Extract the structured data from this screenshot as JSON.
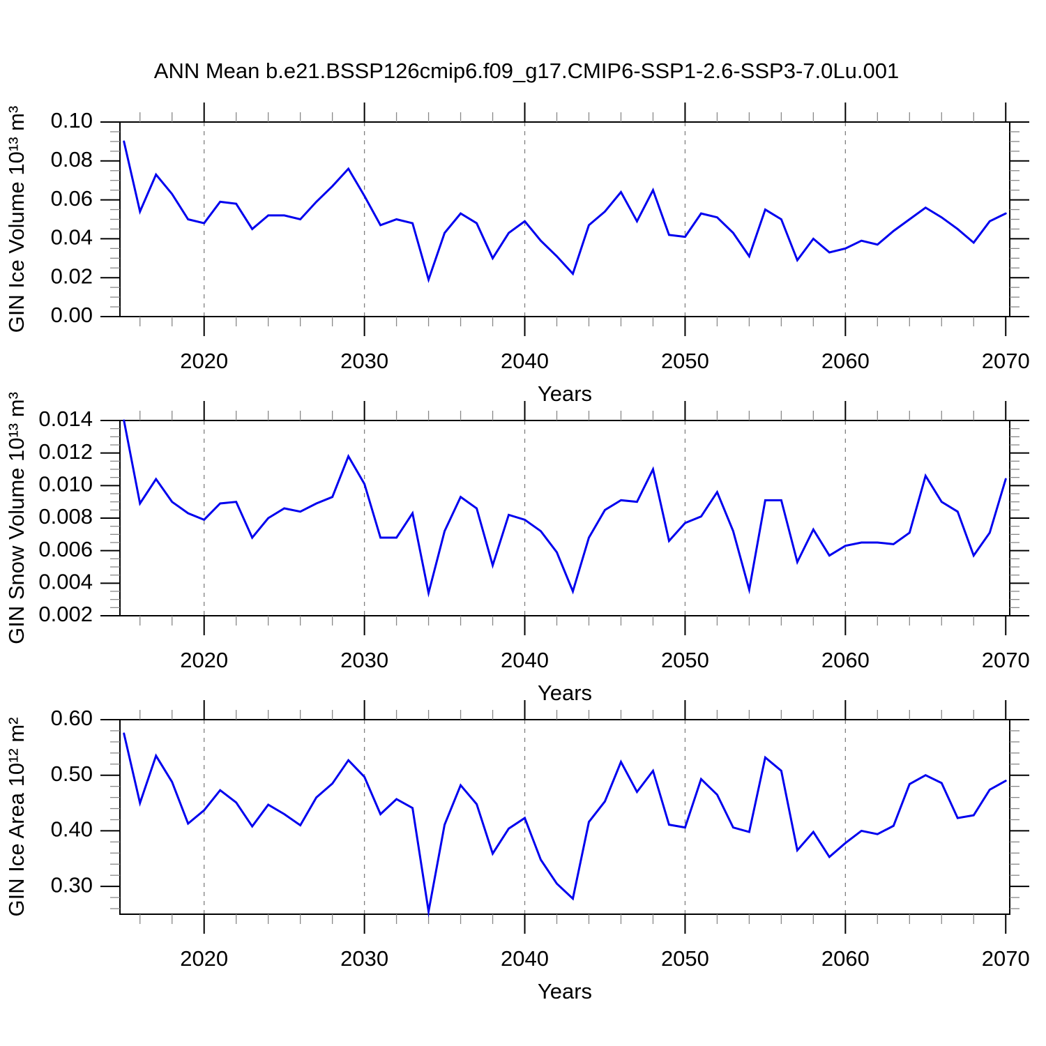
{
  "title": "ANN Mean b.e21.BSSP126cmip6.f09_g17.CMIP6-SSP1-2.6-SSP3-7.0Lu.001",
  "colors": {
    "line": "#0000EE",
    "axis": "#000000",
    "minor_tick": "#888888",
    "grid": "#808080",
    "background": "#ffffff",
    "text": "#000000"
  },
  "chart_data": [
    {
      "type": "line",
      "id": "gin-ice-volume",
      "ylabel": "GIN Ice Volume 10¹³ m³",
      "xlabel": "Years",
      "x": [
        2015,
        2016,
        2017,
        2018,
        2019,
        2020,
        2021,
        2022,
        2023,
        2024,
        2025,
        2026,
        2027,
        2028,
        2029,
        2030,
        2031,
        2032,
        2033,
        2034,
        2035,
        2036,
        2037,
        2038,
        2039,
        2040,
        2041,
        2042,
        2043,
        2044,
        2045,
        2046,
        2047,
        2048,
        2049,
        2050,
        2051,
        2052,
        2053,
        2054,
        2055,
        2056,
        2057,
        2058,
        2059,
        2060,
        2061,
        2062,
        2063,
        2064,
        2065,
        2066,
        2067,
        2068,
        2069,
        2070
      ],
      "values": [
        0.09,
        0.054,
        0.073,
        0.063,
        0.05,
        0.048,
        0.059,
        0.058,
        0.045,
        0.052,
        0.052,
        0.05,
        0.059,
        0.067,
        0.076,
        0.062,
        0.047,
        0.05,
        0.048,
        0.019,
        0.043,
        0.053,
        0.048,
        0.03,
        0.043,
        0.049,
        0.039,
        0.031,
        0.022,
        0.047,
        0.054,
        0.064,
        0.049,
        0.065,
        0.042,
        0.041,
        0.053,
        0.051,
        0.043,
        0.031,
        0.055,
        0.05,
        0.029,
        0.04,
        0.033,
        0.035,
        0.039,
        0.037,
        0.044,
        0.05,
        0.056,
        0.051,
        0.045,
        0.038,
        0.049,
        0.053
      ],
      "ylim": [
        0.0,
        0.1
      ],
      "yticks": [
        0.0,
        0.02,
        0.04,
        0.06,
        0.08,
        0.1
      ],
      "ytick_labels": [
        "0.00",
        "0.02",
        "0.04",
        "0.06",
        "0.08",
        "0.10"
      ],
      "y_minor_step": 0.005,
      "xlim": [
        2014.75,
        2070.25
      ],
      "xticks": [
        2020,
        2030,
        2040,
        2050,
        2060,
        2070
      ],
      "xtick_labels": [
        "2020",
        "2030",
        "2040",
        "2050",
        "2060",
        "2070"
      ],
      "x_minor_step": 2,
      "grid_x": [
        2020,
        2030,
        2040,
        2050,
        2060
      ],
      "grid_style": "dashed",
      "legend": "none"
    },
    {
      "type": "line",
      "id": "gin-snow-volume",
      "ylabel": "GIN Snow Volume 10¹³ m³",
      "xlabel": "Years",
      "x": [
        2015,
        2016,
        2017,
        2018,
        2019,
        2020,
        2021,
        2022,
        2023,
        2024,
        2025,
        2026,
        2027,
        2028,
        2029,
        2030,
        2031,
        2032,
        2033,
        2034,
        2035,
        2036,
        2037,
        2038,
        2039,
        2040,
        2041,
        2042,
        2043,
        2044,
        2045,
        2046,
        2047,
        2048,
        2049,
        2050,
        2051,
        2052,
        2053,
        2054,
        2055,
        2056,
        2057,
        2058,
        2059,
        2060,
        2061,
        2062,
        2063,
        2064,
        2065,
        2066,
        2067,
        2068,
        2069,
        2070
      ],
      "values": [
        0.014,
        0.0089,
        0.0104,
        0.009,
        0.0083,
        0.0079,
        0.0089,
        0.009,
        0.0068,
        0.008,
        0.0086,
        0.0084,
        0.0089,
        0.0093,
        0.0118,
        0.0101,
        0.0068,
        0.0068,
        0.0083,
        0.0034,
        0.0072,
        0.0093,
        0.0086,
        0.0051,
        0.0082,
        0.0079,
        0.0072,
        0.0059,
        0.0035,
        0.0068,
        0.0085,
        0.0091,
        0.009,
        0.011,
        0.0066,
        0.0077,
        0.0081,
        0.0096,
        0.0072,
        0.0036,
        0.0091,
        0.0091,
        0.0053,
        0.0073,
        0.0057,
        0.0063,
        0.0065,
        0.0065,
        0.0064,
        0.0071,
        0.0106,
        0.009,
        0.0084,
        0.0057,
        0.0071,
        0.0104
      ],
      "ylim": [
        0.002,
        0.014
      ],
      "yticks": [
        0.002,
        0.004,
        0.006,
        0.008,
        0.01,
        0.012,
        0.014
      ],
      "ytick_labels": [
        "0.002",
        "0.004",
        "0.006",
        "0.008",
        "0.010",
        "0.012",
        "0.014"
      ],
      "y_minor_step": 0.0005,
      "xlim": [
        2014.75,
        2070.25
      ],
      "xticks": [
        2020,
        2030,
        2040,
        2050,
        2060,
        2070
      ],
      "xtick_labels": [
        "2020",
        "2030",
        "2040",
        "2050",
        "2060",
        "2070"
      ],
      "x_minor_step": 2,
      "grid_x": [
        2020,
        2030,
        2040,
        2050,
        2060
      ],
      "grid_style": "dashed",
      "legend": "none"
    },
    {
      "type": "line",
      "id": "gin-ice-area",
      "ylabel": "GIN Ice Area 10¹² m²",
      "xlabel": "Years",
      "x": [
        2015,
        2016,
        2017,
        2018,
        2019,
        2020,
        2021,
        2022,
        2023,
        2024,
        2025,
        2026,
        2027,
        2028,
        2029,
        2030,
        2031,
        2032,
        2033,
        2034,
        2035,
        2036,
        2037,
        2038,
        2039,
        2040,
        2041,
        2042,
        2043,
        2044,
        2045,
        2046,
        2047,
        2048,
        2049,
        2050,
        2051,
        2052,
        2053,
        2054,
        2055,
        2056,
        2057,
        2058,
        2059,
        2060,
        2061,
        2062,
        2063,
        2064,
        2065,
        2066,
        2067,
        2068,
        2069,
        2070
      ],
      "values": [
        0.575,
        0.45,
        0.535,
        0.488,
        0.413,
        0.437,
        0.473,
        0.451,
        0.408,
        0.447,
        0.43,
        0.41,
        0.46,
        0.485,
        0.527,
        0.497,
        0.43,
        0.457,
        0.441,
        0.255,
        0.411,
        0.482,
        0.448,
        0.359,
        0.404,
        0.423,
        0.348,
        0.305,
        0.278,
        0.416,
        0.453,
        0.524,
        0.47,
        0.508,
        0.411,
        0.406,
        0.493,
        0.465,
        0.406,
        0.398,
        0.532,
        0.508,
        0.365,
        0.398,
        0.353,
        0.378,
        0.4,
        0.394,
        0.409,
        0.484,
        0.5,
        0.486,
        0.423,
        0.428,
        0.474,
        0.49
      ],
      "ylim": [
        0.25,
        0.6
      ],
      "yticks": [
        0.3,
        0.4,
        0.5,
        0.6
      ],
      "ytick_labels": [
        "0.30",
        "0.40",
        "0.50",
        "0.60"
      ],
      "y_minor_step": 0.02,
      "xlim": [
        2014.75,
        2070.25
      ],
      "xticks": [
        2020,
        2030,
        2040,
        2050,
        2060,
        2070
      ],
      "xtick_labels": [
        "2020",
        "2030",
        "2040",
        "2050",
        "2060",
        "2070"
      ],
      "x_minor_step": 2,
      "grid_x": [
        2020,
        2030,
        2040,
        2050,
        2060
      ],
      "grid_style": "dashed",
      "legend": "none"
    }
  ]
}
